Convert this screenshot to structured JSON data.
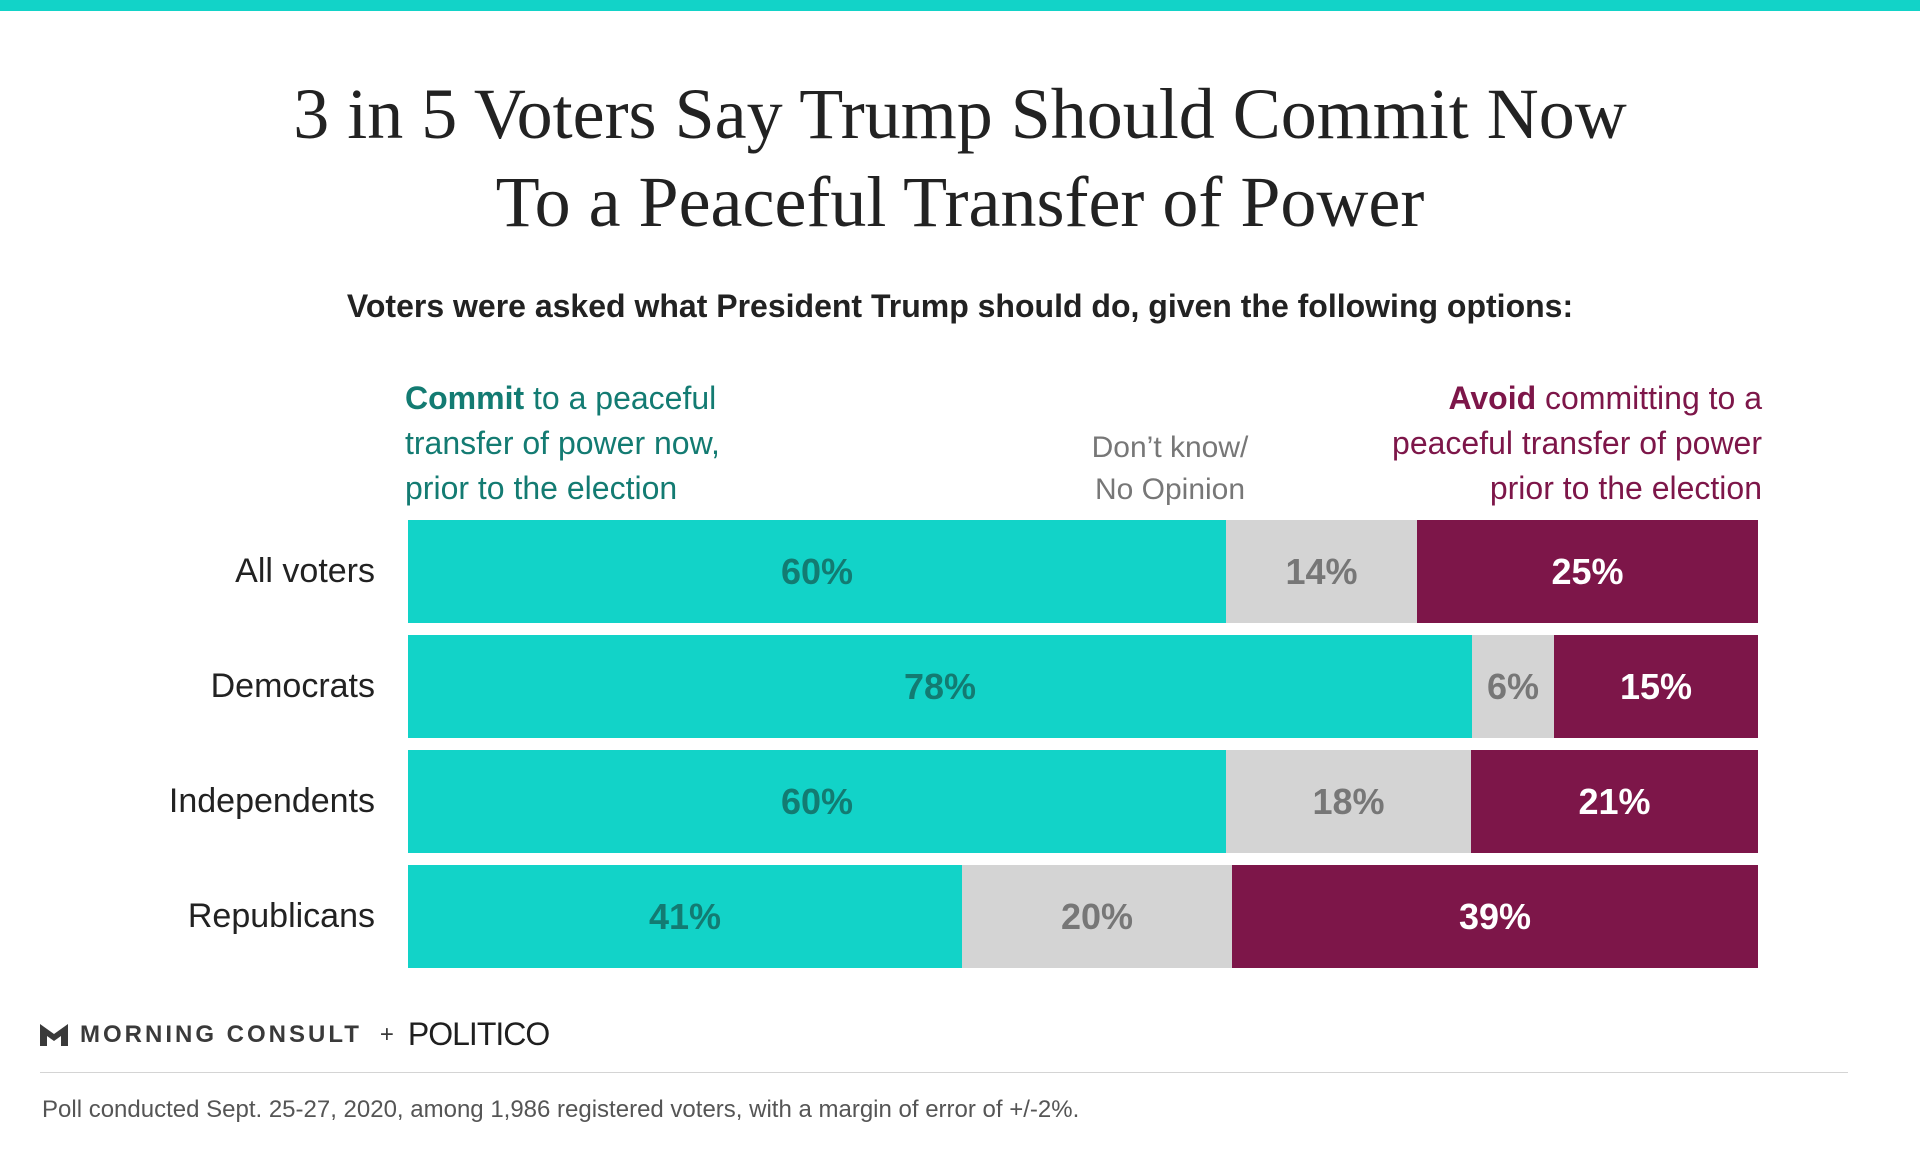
{
  "title_line1": "3 in 5 Voters Say Trump Should Commit Now",
  "title_line2": "To a Peaceful Transfer of Power",
  "subtitle": "Voters were asked what President Trump should do, given the following options:",
  "legend": {
    "commit_bold": "Commit",
    "commit_line1_rest": " to a peaceful",
    "commit_line2": "transfer of power now,",
    "commit_line3": "prior to the election",
    "dk_line1": "Don’t know/",
    "dk_line2": "No Opinion",
    "avoid_bold": "Avoid",
    "avoid_line1_rest": " committing to a",
    "avoid_line2": "peaceful transfer of power",
    "avoid_line3": "prior to the election"
  },
  "colors": {
    "commit": "#12d3c8",
    "dont_know": "#d4d4d4",
    "avoid": "#7d1649",
    "commit_text": "#137b72",
    "dont_know_text": "#777777",
    "avoid_text": "#ffffff"
  },
  "chart_data": {
    "type": "bar",
    "orientation": "horizontal",
    "stacked": true,
    "categories": [
      "All voters",
      "Democrats",
      "Independents",
      "Republicans"
    ],
    "series": [
      {
        "key": "commit",
        "values": [
          60,
          78,
          60,
          41
        ],
        "labels": [
          "60%",
          "78%",
          "60%",
          "41%"
        ]
      },
      {
        "key": "dont_know",
        "values": [
          14,
          6,
          18,
          20
        ],
        "labels": [
          "14%",
          "6%",
          "18%",
          "20%"
        ]
      },
      {
        "key": "avoid",
        "values": [
          25,
          15,
          21,
          39
        ],
        "labels": [
          "25%",
          "15%",
          "21%",
          "39%"
        ]
      }
    ]
  },
  "logo": {
    "brand": "MORNING CONSULT",
    "plus": "+",
    "partner": "POLITICO"
  },
  "footnote": "Poll conducted Sept. 25-27, 2020, among 1,986 registered voters, with a margin of error of +/-2%."
}
